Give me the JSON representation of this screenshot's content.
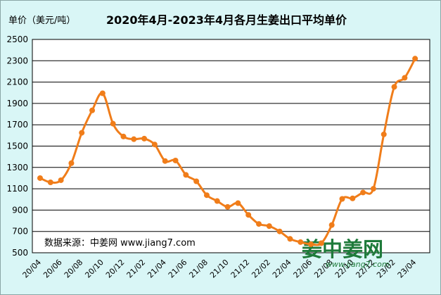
{
  "header": {
    "unit_label": "单价（美元/吨）",
    "title": "2020年4月-2023年4月各月生姜出口平均单价"
  },
  "source_note": "数据来源：中姜网 www.jiang7.com",
  "watermark": {
    "brand": "姜中姜网",
    "url": "www.jiang7.com",
    "color": "#1e7a3a"
  },
  "chart_data": {
    "type": "line",
    "title": "2020年4月-2023年4月各月生姜出口平均单价",
    "ylabel": "单价（美元/吨）",
    "xlabel": "",
    "ylim": [
      500,
      2500
    ],
    "yticks": [
      500,
      700,
      900,
      1100,
      1300,
      1500,
      1700,
      1900,
      2100,
      2300,
      2500
    ],
    "grid": true,
    "legend": "none",
    "line_color": "#f07d1a",
    "x_tick_labels": [
      "20/04",
      "20/06",
      "20/08",
      "20/10",
      "20/12",
      "21/02",
      "21/04",
      "21/06",
      "21/08",
      "21/10",
      "21/12",
      "22/02",
      "22/04",
      "22/06",
      "22/08",
      "22/10",
      "22/12",
      "23/02",
      "23/04"
    ],
    "x": [
      "20/04",
      "20/05",
      "20/06",
      "20/07",
      "20/08",
      "20/09",
      "20/10",
      "20/11",
      "20/12",
      "21/01",
      "21/02",
      "21/03",
      "21/04",
      "21/05",
      "21/06",
      "21/07",
      "21/08",
      "21/09",
      "21/10",
      "21/11",
      "21/12",
      "22/01",
      "22/02",
      "22/03",
      "22/04",
      "22/05",
      "22/06",
      "22/07",
      "22/08",
      "22/09",
      "22/10",
      "22/11",
      "22/12",
      "23/01",
      "23/02",
      "23/03",
      "23/04"
    ],
    "series": [
      {
        "values": [
          1200,
          1160,
          1180,
          1340,
          1625,
          1835,
          1995,
          1710,
          1590,
          1565,
          1570,
          1515,
          1360,
          1365,
          1230,
          1170,
          1040,
          985,
          930,
          965,
          855,
          770,
          750,
          700,
          630,
          600,
          580,
          590,
          760,
          1005,
          1010,
          1065,
          1100,
          1610,
          2055,
          2140,
          2320
        ]
      }
    ]
  }
}
